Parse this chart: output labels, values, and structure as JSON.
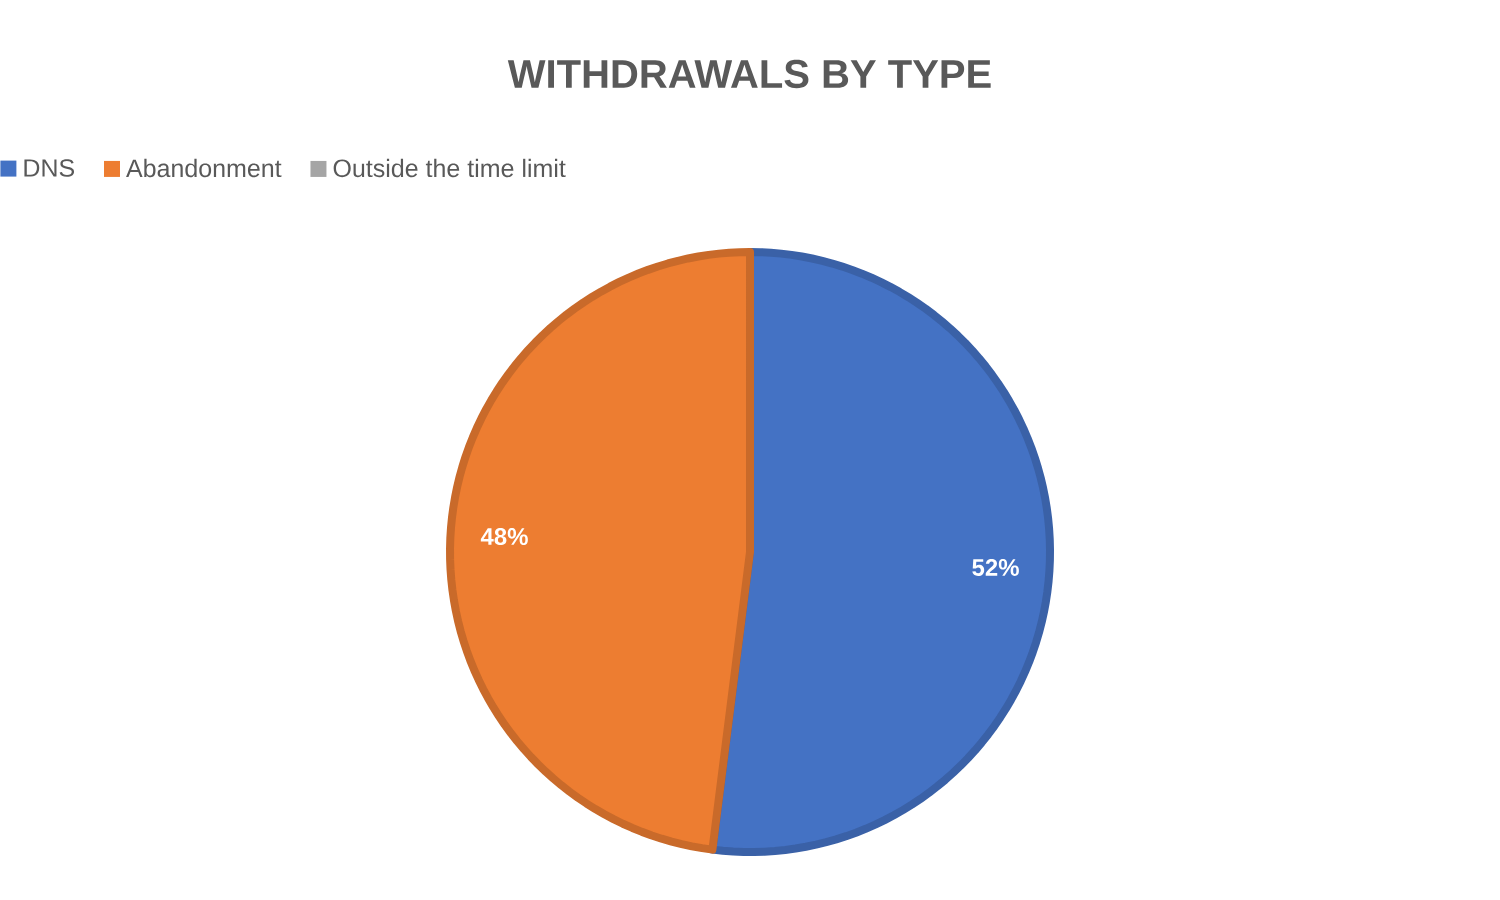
{
  "chart_data": {
    "type": "pie",
    "title": "WITHDRAWALS BY TYPE",
    "categories": [
      "DNS",
      "Abandonment",
      "Outside the time limit"
    ],
    "values": [
      52,
      48,
      0
    ],
    "colors": [
      "#4472c4",
      "#ed7d31",
      "#a5a5a5"
    ],
    "value_labels": [
      "52%",
      "48%",
      null
    ],
    "legend": "top"
  }
}
